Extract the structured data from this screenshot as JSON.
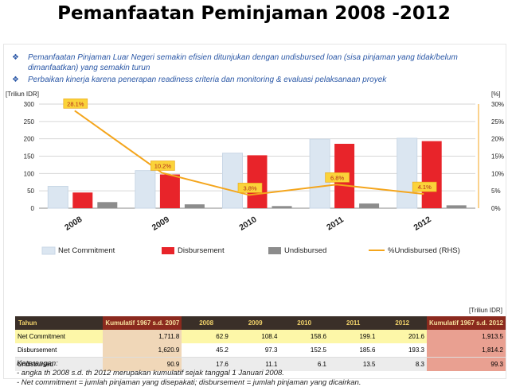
{
  "slide_title": "Pemanfaatan Peminjaman 2008 -2012",
  "bullets": [
    "Pemanfaatan Pinjaman Luar Negeri semakin efisien ditunjukan dengan undisbursed loan (sisa pinjaman yang tidak/belum dimanfaatkan) yang semakin turun",
    "Perbaikan kinerja karena penerapan readiness criteria dan monitoring & evaluasi pelaksanaan proyek"
  ],
  "chart_data": {
    "type": "bar",
    "categories": [
      "2008",
      "2009",
      "2010",
      "2011",
      "2012"
    ],
    "series": [
      {
        "name": "Net Commitment",
        "values": [
          62.9,
          108.4,
          158.6,
          199.1,
          201.6
        ],
        "color": "#dbe6f1"
      },
      {
        "name": "Disbursement",
        "values": [
          45.2,
          97.3,
          152.5,
          185.6,
          193.3
        ],
        "color": "#e8242a"
      },
      {
        "name": "Undisbursed",
        "values": [
          17.6,
          11.1,
          6.1,
          13.5,
          8.3
        ],
        "color": "#8c8c8c"
      }
    ],
    "line_series": {
      "name": "%Undisbursed (RHS)",
      "values": [
        28.1,
        10.2,
        3.8,
        6.8,
        4.1
      ],
      "labels": [
        "28.1%",
        "10.2%",
        "3.8%",
        "6.8%",
        "4.1%"
      ],
      "color": "#f4a51c"
    },
    "ylabel_left": "[Triliun IDR]",
    "ylabel_right": "[%]",
    "ylim": [
      0,
      300
    ],
    "yticks": [
      "0",
      "50",
      "100",
      "150",
      "200",
      "250",
      "300"
    ],
    "ylim_right": [
      0,
      30
    ],
    "yticks_right": [
      "0%",
      "5%",
      "10%",
      "15%",
      "20%",
      "25%",
      "30%"
    ],
    "grid": true,
    "legend": "bottom"
  },
  "table": {
    "unit": "[Triliun IDR]",
    "headers": [
      "Tahun",
      "Kumulatif 1967 s.d. 2007",
      "2008",
      "2009",
      "2010",
      "2011",
      "2012",
      "Kumulatif 1967 s.d. 2012"
    ],
    "rows": [
      {
        "label": "Net Commitment",
        "values": [
          "1,711.8",
          "62.9",
          "108.4",
          "158.6",
          "199.1",
          "201.6",
          "1,913.5"
        ]
      },
      {
        "label": "Disbursement",
        "values": [
          "1,620.9",
          "45.2",
          "97.3",
          "152.5",
          "185.6",
          "193.3",
          "1,814.2"
        ]
      },
      {
        "label": "Undisbursed",
        "values": [
          "90.9",
          "17.6",
          "11.1",
          "6.1",
          "13.5",
          "8.3",
          "99.3"
        ]
      }
    ]
  },
  "notes": {
    "title": "Keterangan:",
    "lines": [
      "- angka th 2008 s.d. th 2012 merupakan kumulatif sejak tanggal 1 Januari 2008.",
      "- Net commitment = jumlah pinjaman yang disepakati; disbursement = jumlah pinjaman yang dicairkan."
    ]
  }
}
